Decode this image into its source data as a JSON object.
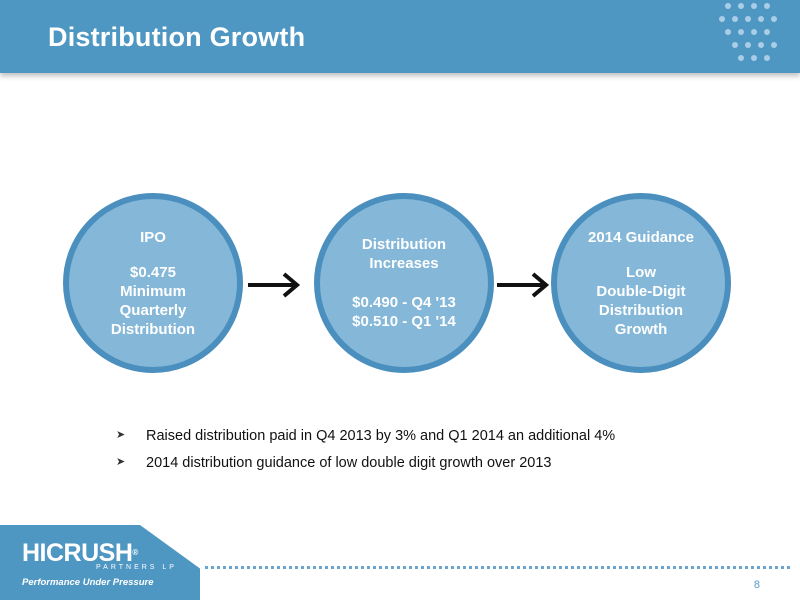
{
  "header": {
    "title": "Distribution Growth"
  },
  "flow": [
    {
      "title": "IPO",
      "body": "$0.475\nMinimum\nQuarterly\nDistribution"
    },
    {
      "title": "Distribution\nIncreases",
      "body": "$0.490 - Q4 '13\n$0.510 - Q1 '14"
    },
    {
      "title": "2014 Guidance",
      "body": "Low\nDouble-Digit\nDistribution\nGrowth"
    }
  ],
  "bullets": [
    "Raised distribution paid in Q4 2013 by 3% and Q1 2014 an additional 4%",
    "2014 distribution guidance of low double digit growth over 2013"
  ],
  "logo": {
    "brand_left": "HI",
    "brand_right": "CRUSH",
    "trademark": "®",
    "subtitle": "PARTNERS LP",
    "tagline": "Performance Under Pressure"
  },
  "footer": {
    "page_number": "8"
  },
  "colors": {
    "primary": "#4f97c3",
    "circle_fill": "#84b7d8",
    "circle_border": "#4a8fbe"
  },
  "icons": {
    "bullet": "arrow-bullet-icon",
    "flow_arrow": "right-arrow-icon"
  }
}
